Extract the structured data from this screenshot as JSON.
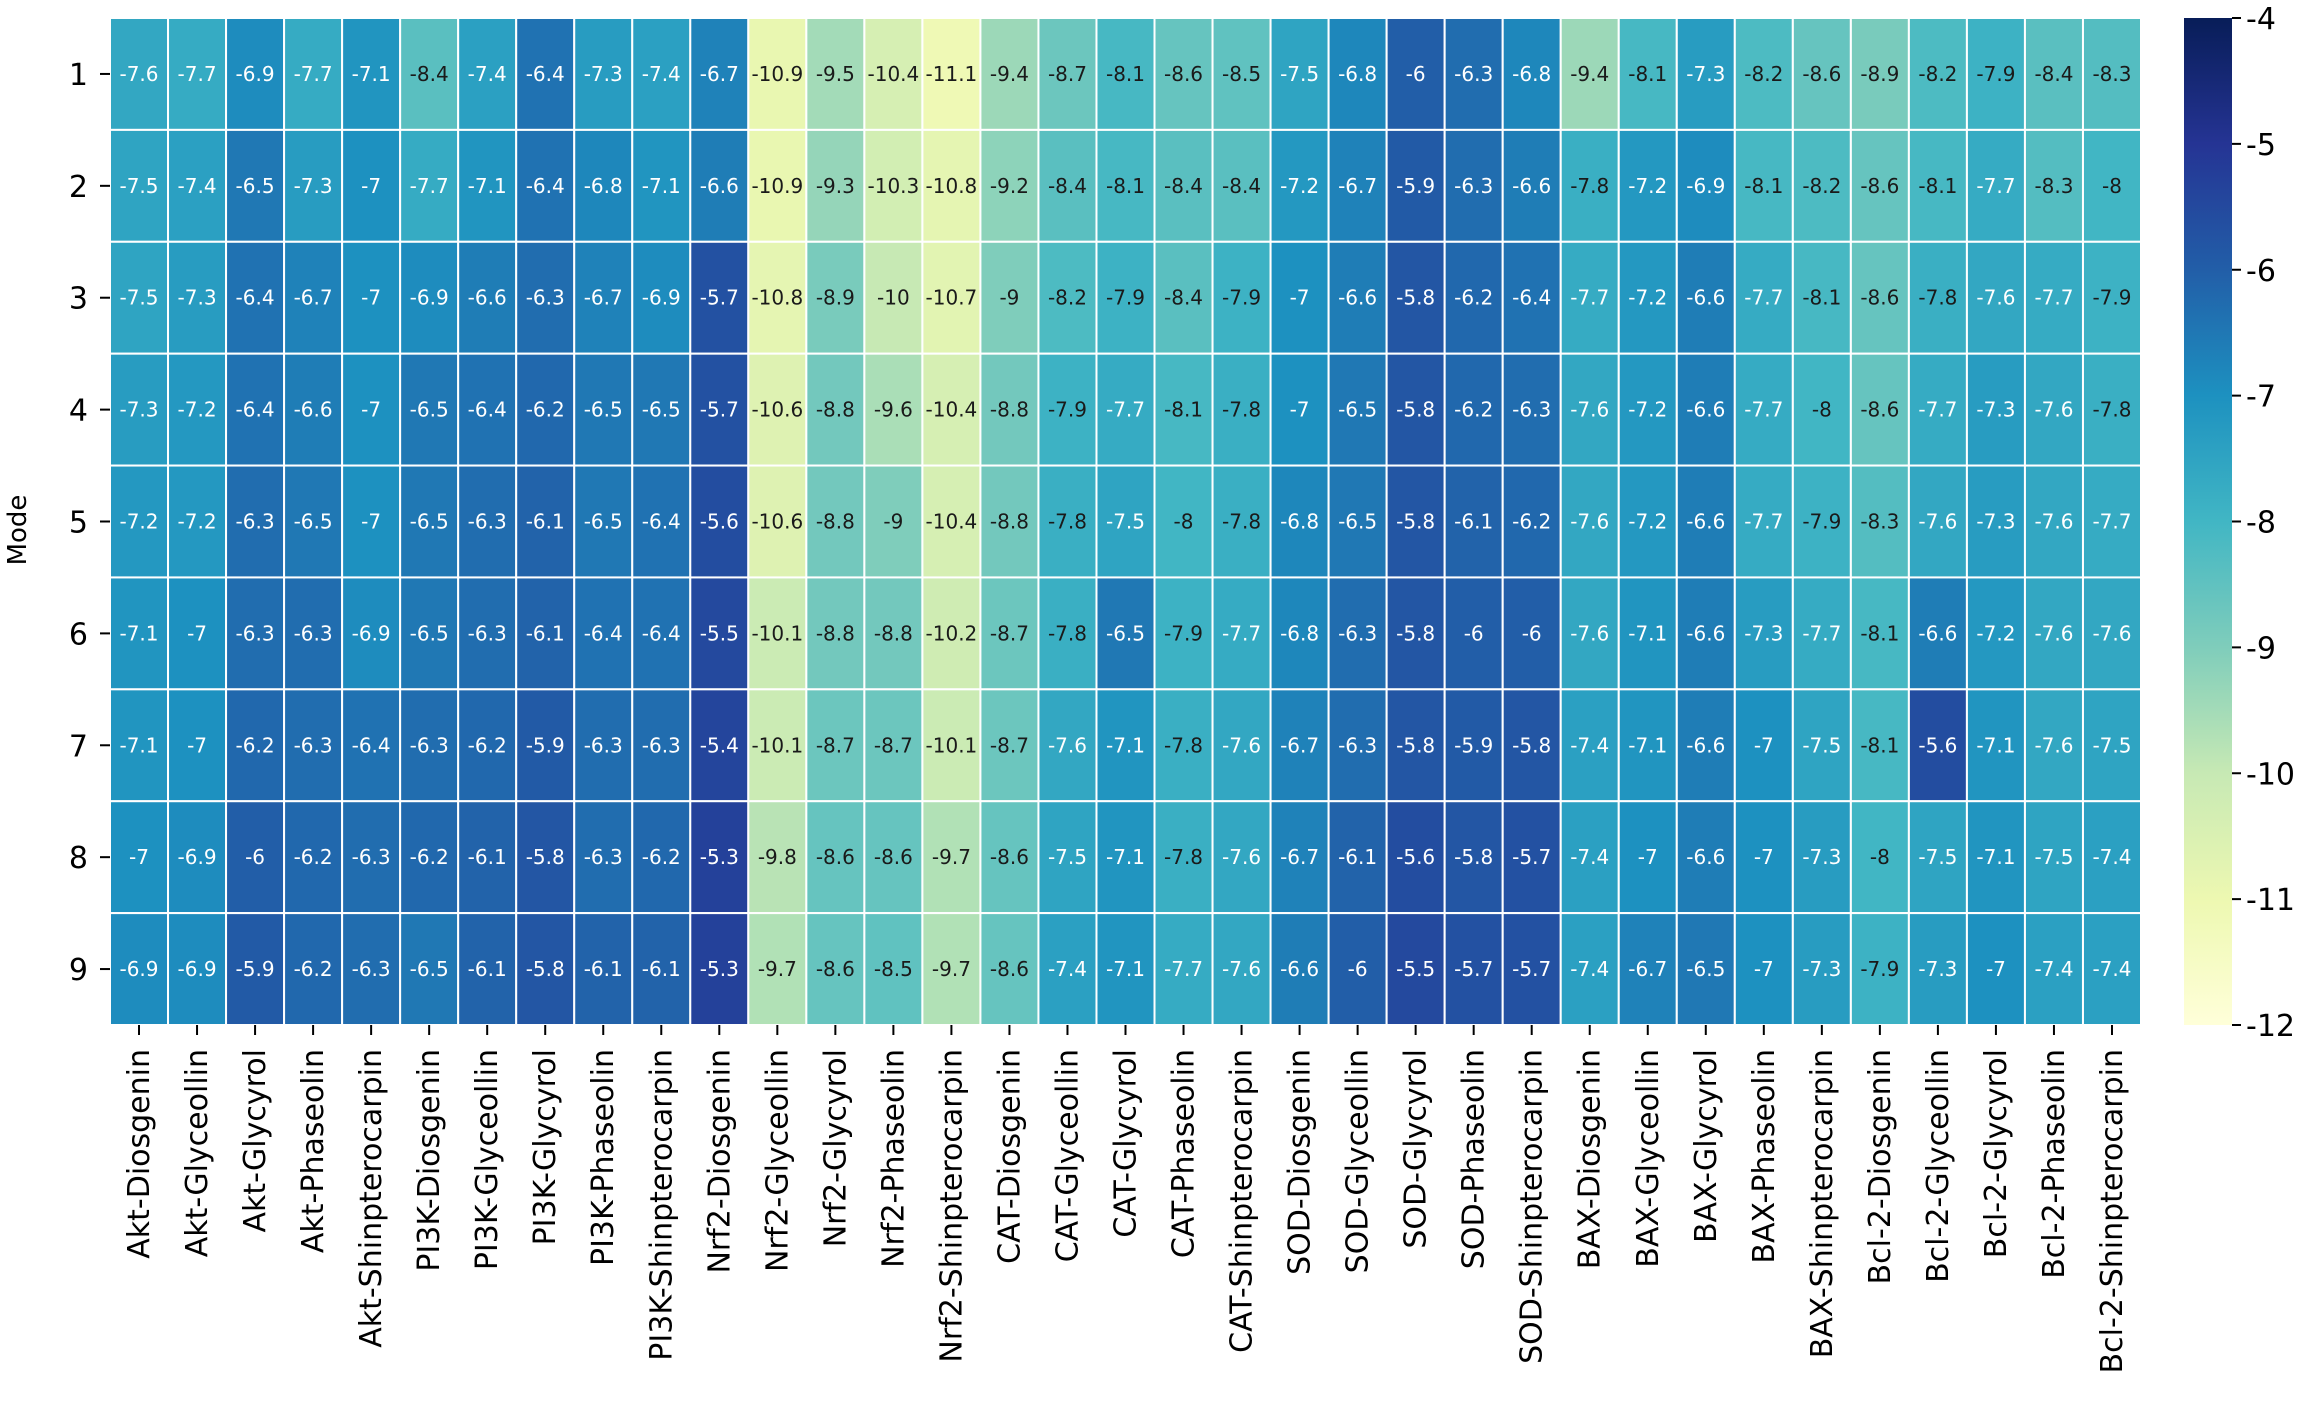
{
  "chart_data": {
    "type": "heatmap",
    "title": "",
    "ylabel": "Mode",
    "xlabel": "",
    "rows": [
      "1",
      "2",
      "3",
      "4",
      "5",
      "6",
      "7",
      "8",
      "9"
    ],
    "columns": [
      "Akt-Diosgenin",
      "Akt-Glyceollin",
      "Akt-Glycyrol",
      "Akt-Phaseolin",
      "Akt-Shinpterocarpin",
      "PI3K-Diosgenin",
      "PI3K-Glyceollin",
      "PI3K-Glycyrol",
      "PI3K-Phaseolin",
      "PI3K-Shinpterocarpin",
      "Nrf2-Diosgenin",
      "Nrf2-Glyceollin",
      "Nrf2-Glycyrol",
      "Nrf2-Phaseolin",
      "Nrf2-Shinpterocarpin",
      "CAT-Diosgenin",
      "CAT-Glyceollin",
      "CAT-Glycyrol",
      "CAT-Phaseolin",
      "CAT-Shinpterocarpin",
      "SOD-Diosgenin",
      "SOD-Glyceollin",
      "SOD-Glycyrol",
      "SOD-Phaseolin",
      "SOD-Shinpterocarpin",
      "BAX-Diosgenin",
      "BAX-Glyceollin",
      "BAX-Glycyrol",
      "BAX-Phaseolin",
      "BAX-Shinpterocarpin",
      "Bcl-2-Diosgenin",
      "Bcl-2-Glyceollin",
      "Bcl-2-Glycyrol",
      "Bcl-2-Phaseolin",
      "Bcl-2-Shinpterocarpin"
    ],
    "values": [
      [
        -7.6,
        -7.7,
        -6.9,
        -7.7,
        -7.1,
        -8.4,
        -7.4,
        -6.4,
        -7.3,
        -7.4,
        -6.7,
        -10.9,
        -9.5,
        -10.4,
        -11.1,
        -9.4,
        -8.7,
        -8.1,
        -8.6,
        -8.5,
        -7.5,
        -6.8,
        -6,
        -6.3,
        -6.8,
        -9.4,
        -8.1,
        -7.3,
        -8.2,
        -8.6,
        -8.9,
        -8.2,
        -7.9,
        -8.4,
        -8.3
      ],
      [
        -7.5,
        -7.4,
        -6.5,
        -7.3,
        -7,
        -7.7,
        -7.1,
        -6.4,
        -6.8,
        -7.1,
        -6.6,
        -10.9,
        -9.3,
        -10.3,
        -10.8,
        -9.2,
        -8.4,
        -8.1,
        -8.4,
        -8.4,
        -7.2,
        -6.7,
        -5.9,
        -6.3,
        -6.6,
        -7.8,
        -7.2,
        -6.9,
        -8.1,
        -8.2,
        -8.6,
        -8.1,
        -7.7,
        -8.3,
        -8
      ],
      [
        -7.5,
        -7.3,
        -6.4,
        -6.7,
        -7,
        -6.9,
        -6.6,
        -6.3,
        -6.7,
        -6.9,
        -5.7,
        -10.8,
        -8.9,
        -10,
        -10.7,
        -9,
        -8.2,
        -7.9,
        -8.4,
        -7.9,
        -7,
        -6.6,
        -5.8,
        -6.2,
        -6.4,
        -7.7,
        -7.2,
        -6.6,
        -7.7,
        -8.1,
        -8.6,
        -7.8,
        -7.6,
        -7.7,
        -7.9
      ],
      [
        -7.3,
        -7.2,
        -6.4,
        -6.6,
        -7,
        -6.5,
        -6.4,
        -6.2,
        -6.5,
        -6.5,
        -5.7,
        -10.6,
        -8.8,
        -9.6,
        -10.4,
        -8.8,
        -7.9,
        -7.7,
        -8.1,
        -7.8,
        -7,
        -6.5,
        -5.8,
        -6.2,
        -6.3,
        -7.6,
        -7.2,
        -6.6,
        -7.7,
        -8,
        -8.6,
        -7.7,
        -7.3,
        -7.6,
        -7.8
      ],
      [
        -7.2,
        -7.2,
        -6.3,
        -6.5,
        -7,
        -6.5,
        -6.3,
        -6.1,
        -6.5,
        -6.4,
        -5.6,
        -10.6,
        -8.8,
        -9,
        -10.4,
        -8.8,
        -7.8,
        -7.5,
        -8,
        -7.8,
        -6.8,
        -6.5,
        -5.8,
        -6.1,
        -6.2,
        -7.6,
        -7.2,
        -6.6,
        -7.7,
        -7.9,
        -8.3,
        -7.6,
        -7.3,
        -7.6,
        -7.7
      ],
      [
        -7.1,
        -7,
        -6.3,
        -6.3,
        -6.9,
        -6.5,
        -6.3,
        -6.1,
        -6.4,
        -6.4,
        -5.5,
        -10.1,
        -8.8,
        -8.8,
        -10.2,
        -8.7,
        -7.8,
        -6.5,
        -7.9,
        -7.7,
        -6.8,
        -6.3,
        -5.8,
        -6,
        -6,
        -7.6,
        -7.1,
        -6.6,
        -7.3,
        -7.7,
        -8.1,
        -6.6,
        -7.2,
        -7.6,
        -7.6
      ],
      [
        -7.1,
        -7,
        -6.2,
        -6.3,
        -6.4,
        -6.3,
        -6.2,
        -5.9,
        -6.3,
        -6.3,
        -5.4,
        -10.1,
        -8.7,
        -8.7,
        -10.1,
        -8.7,
        -7.6,
        -7.1,
        -7.8,
        -7.6,
        -6.7,
        -6.3,
        -5.8,
        -5.9,
        -5.8,
        -7.4,
        -7.1,
        -6.6,
        -7,
        -7.5,
        -8.1,
        -5.6,
        -7.1,
        -7.6,
        -7.5
      ],
      [
        -7,
        -6.9,
        -6,
        -6.2,
        -6.3,
        -6.2,
        -6.1,
        -5.8,
        -6.3,
        -6.2,
        -5.3,
        -9.8,
        -8.6,
        -8.6,
        -9.7,
        -8.6,
        -7.5,
        -7.1,
        -7.8,
        -7.6,
        -6.7,
        -6.1,
        -5.6,
        -5.8,
        -5.7,
        -7.4,
        -7,
        -6.6,
        -7,
        -7.3,
        -8,
        -7.5,
        -7.1,
        -7.5,
        -7.4
      ],
      [
        -6.9,
        -6.9,
        -5.9,
        -6.2,
        -6.3,
        -6.5,
        -6.1,
        -5.8,
        -6.1,
        -6.1,
        -5.3,
        -9.7,
        -8.6,
        -8.5,
        -9.7,
        -8.6,
        -7.4,
        -7.1,
        -7.7,
        -7.6,
        -6.6,
        -6,
        -5.5,
        -5.7,
        -5.7,
        -7.4,
        -6.7,
        -6.5,
        -7,
        -7.3,
        -7.9,
        -7.3,
        -7,
        -7.4,
        -7.4
      ]
    ],
    "colorbar": {
      "vmin": -12,
      "vmax": -4,
      "ticks": [
        "-4",
        "-5",
        "-6",
        "-7",
        "-8",
        "-9",
        "-10",
        "-11",
        "-12"
      ],
      "colormap": "YlGnBu",
      "colormap_colors": [
        "#ffffd9",
        "#edf8b1",
        "#c7e9b4",
        "#7fcdbb",
        "#41b6c4",
        "#1d91c0",
        "#225ea8",
        "#253494",
        "#081d58"
      ]
    },
    "grid_lines": "white",
    "legend": "colorbar-right"
  }
}
